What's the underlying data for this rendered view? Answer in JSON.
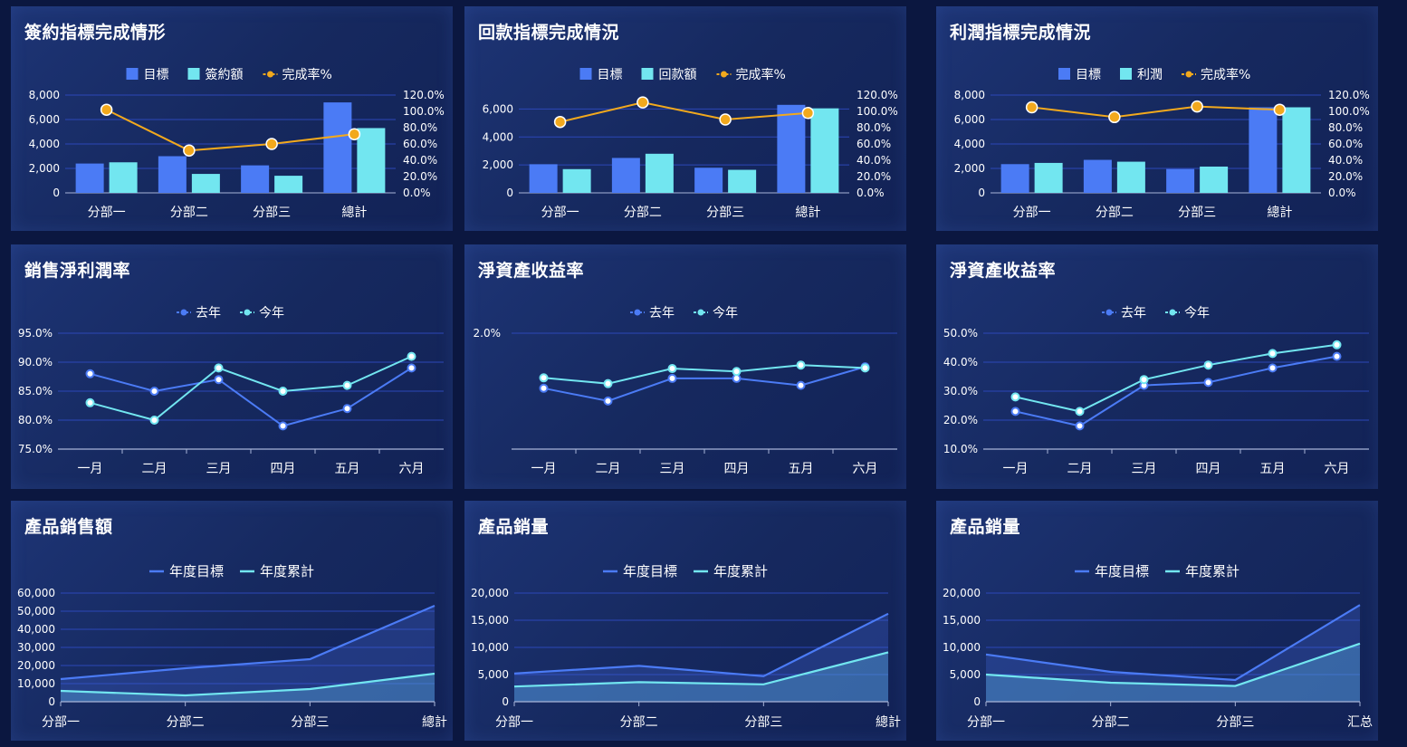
{
  "colors": {
    "target": "#4b7bf5",
    "actual": "#72e6f0",
    "rate": "#f2a91d",
    "grid": "#2c47b8",
    "axis": "#a8b4d8",
    "text": "#ffffff"
  },
  "chart_data": [
    {
      "title": "簽約指標完成情形",
      "type": "bar",
      "legend": [
        "目標",
        "簽約額",
        "完成率%"
      ],
      "categories": [
        "分部一",
        "分部二",
        "分部三",
        "總計"
      ],
      "series": [
        {
          "name": "目標",
          "values": [
            2400,
            3000,
            2250,
            7400
          ]
        },
        {
          "name": "簽約額",
          "values": [
            2500,
            1550,
            1400,
            5300
          ]
        },
        {
          "name": "完成率%",
          "values": [
            102,
            52,
            60,
            72
          ]
        }
      ],
      "ylim": [
        0,
        8000
      ],
      "yticks": [
        "0",
        "2,000",
        "4,000",
        "6,000",
        "8,000"
      ],
      "y2lim": [
        0,
        120
      ],
      "y2ticks": [
        "0.0%",
        "20.0%",
        "40.0%",
        "60.0%",
        "80.0%",
        "100.0%",
        "120.0%"
      ]
    },
    {
      "title": "回款指標完成情況",
      "type": "bar",
      "legend": [
        "目標",
        "回款額",
        "完成率%"
      ],
      "categories": [
        "分部一",
        "分部二",
        "分部三",
        "總計"
      ],
      "series": [
        {
          "name": "目標",
          "values": [
            2050,
            2500,
            1800,
            6300
          ]
        },
        {
          "name": "回款額",
          "values": [
            1700,
            2800,
            1650,
            6050
          ]
        },
        {
          "name": "完成率%",
          "values": [
            87,
            111,
            90,
            98
          ]
        }
      ],
      "ylim": [
        0,
        7000
      ],
      "yticks": [
        "0",
        "2,000",
        "4,000",
        "6,000"
      ],
      "y2lim": [
        0,
        120
      ],
      "y2ticks": [
        "0.0%",
        "20.0%",
        "40.0%",
        "60.0%",
        "80.0%",
        "100.0%",
        "120.0%"
      ]
    },
    {
      "title": "利潤指標完成情況",
      "type": "bar",
      "legend": [
        "目標",
        "利潤",
        "完成率%"
      ],
      "categories": [
        "分部一",
        "分部二",
        "分部三",
        "總計"
      ],
      "series": [
        {
          "name": "目標",
          "values": [
            2350,
            2700,
            1950,
            7000
          ]
        },
        {
          "name": "利潤",
          "values": [
            2450,
            2550,
            2150,
            7000
          ]
        },
        {
          "name": "完成率%",
          "values": [
            105,
            93,
            106,
            102
          ]
        }
      ],
      "ylim": [
        0,
        8000
      ],
      "yticks": [
        "0",
        "2,000",
        "4,000",
        "6,000",
        "8,000"
      ],
      "y2lim": [
        0,
        120
      ],
      "y2ticks": [
        "0.0%",
        "20.0%",
        "40.0%",
        "60.0%",
        "80.0%",
        "100.0%",
        "120.0%"
      ]
    },
    {
      "title": "銷售淨利潤率",
      "type": "line",
      "legend": [
        "去年",
        "今年"
      ],
      "categories": [
        "一月",
        "二月",
        "三月",
        "四月",
        "五月",
        "六月"
      ],
      "series": [
        {
          "name": "去年",
          "values": [
            88,
            85,
            87,
            79,
            82,
            89
          ]
        },
        {
          "name": "今年",
          "values": [
            83,
            80,
            89,
            85,
            86,
            91
          ]
        }
      ],
      "ylim": [
        75,
        95
      ],
      "yticks": [
        "75.0%",
        "80.0%",
        "85.0%",
        "90.0%",
        "95.0%"
      ]
    },
    {
      "title": "淨資產收益率",
      "type": "line",
      "legend": [
        "去年",
        "今年"
      ],
      "categories": [
        "一月",
        "二月",
        "三月",
        "四月",
        "五月",
        "六月"
      ],
      "series": [
        {
          "name": "去年",
          "values": [
            1.05,
            0.83,
            1.22,
            1.22,
            1.1,
            1.42
          ]
        },
        {
          "name": "今年",
          "values": [
            1.23,
            1.13,
            1.39,
            1.34,
            1.45,
            1.4
          ]
        }
      ],
      "ylim": [
        0,
        2
      ],
      "yticks": [
        "2.0%"
      ]
    },
    {
      "title": "淨資產收益率",
      "type": "line",
      "legend": [
        "去年",
        "今年"
      ],
      "categories": [
        "一月",
        "二月",
        "三月",
        "四月",
        "五月",
        "六月"
      ],
      "series": [
        {
          "name": "去年",
          "values": [
            23,
            18,
            32,
            33,
            38,
            42
          ]
        },
        {
          "name": "今年",
          "values": [
            28,
            23,
            34,
            39,
            43,
            46
          ]
        }
      ],
      "ylim": [
        10,
        50
      ],
      "yticks": [
        "10.0%",
        "20.0%",
        "30.0%",
        "40.0%",
        "50.0%"
      ]
    },
    {
      "title": "產品銷售額",
      "type": "area",
      "legend": [
        "年度目標",
        "年度累計"
      ],
      "categories": [
        "分部一",
        "分部二",
        "分部三",
        "總計"
      ],
      "series": [
        {
          "name": "年度目標",
          "values": [
            12500,
            18500,
            23500,
            53000
          ]
        },
        {
          "name": "年度累計",
          "values": [
            6000,
            3500,
            7000,
            15500
          ]
        }
      ],
      "ylim": [
        0,
        60000
      ],
      "yticks": [
        "0",
        "10,000",
        "20,000",
        "30,000",
        "40,000",
        "50,000",
        "60,000"
      ]
    },
    {
      "title": "產品銷量",
      "type": "area",
      "legend": [
        "年度目標",
        "年度累計"
      ],
      "categories": [
        "分部一",
        "分部二",
        "分部三",
        "總計"
      ],
      "series": [
        {
          "name": "年度目標",
          "values": [
            5200,
            6600,
            4700,
            16200
          ]
        },
        {
          "name": "年度累計",
          "values": [
            2800,
            3600,
            3200,
            9100
          ]
        }
      ],
      "ylim": [
        0,
        20000
      ],
      "yticks": [
        "0",
        "5,000",
        "10,000",
        "15,000",
        "20,000"
      ]
    },
    {
      "title": "產品銷量",
      "type": "area",
      "legend": [
        "年度目標",
        "年度累計"
      ],
      "categories": [
        "分部一",
        "分部二",
        "分部三",
        "汇总"
      ],
      "series": [
        {
          "name": "年度目標",
          "values": [
            8700,
            5500,
            4000,
            17800
          ]
        },
        {
          "name": "年度累計",
          "values": [
            5000,
            3500,
            2900,
            10700
          ]
        }
      ],
      "ylim": [
        0,
        20000
      ],
      "yticks": [
        "0",
        "5,000",
        "10,000",
        "15,000",
        "20,000"
      ]
    }
  ]
}
